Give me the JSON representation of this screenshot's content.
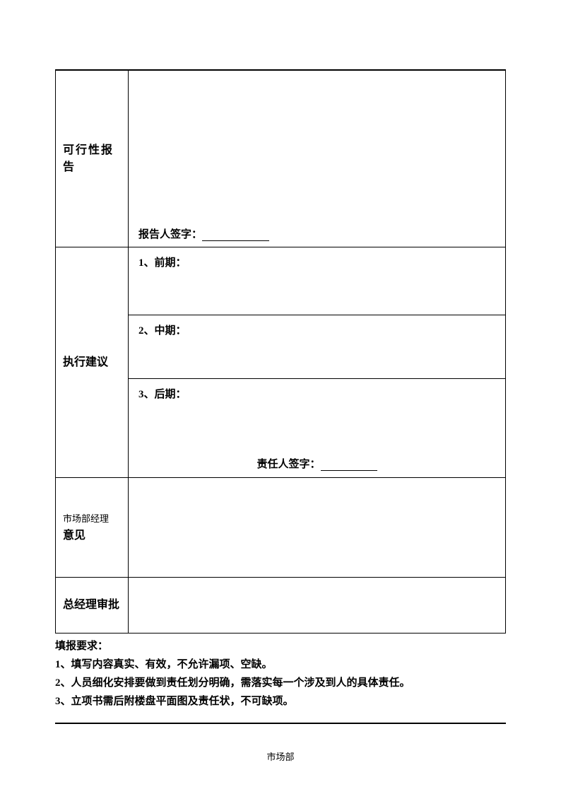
{
  "table": {
    "row1": {
      "label": "可行性报告",
      "sign_label": "报告人签字："
    },
    "row2": {
      "label": "执行建议",
      "phase1": "1、前期：",
      "phase2": "2、中期：",
      "phase3": "3、后期：",
      "sign_label": "责任人签字："
    },
    "row3": {
      "label_small": "市场部经理",
      "label_bold": "意见"
    },
    "row4": {
      "label": "总经理审批"
    }
  },
  "requirements": {
    "title": "填报要求：",
    "items": [
      "1、填写内容真实、有效，不允许漏项、空缺。",
      "2、人员细化安排要做到责任划分明确，需落实每一个涉及到人的具体责任。",
      "3、立项书需后附楼盘平面图及责任状，不可缺项。"
    ]
  },
  "footer": "市场部"
}
